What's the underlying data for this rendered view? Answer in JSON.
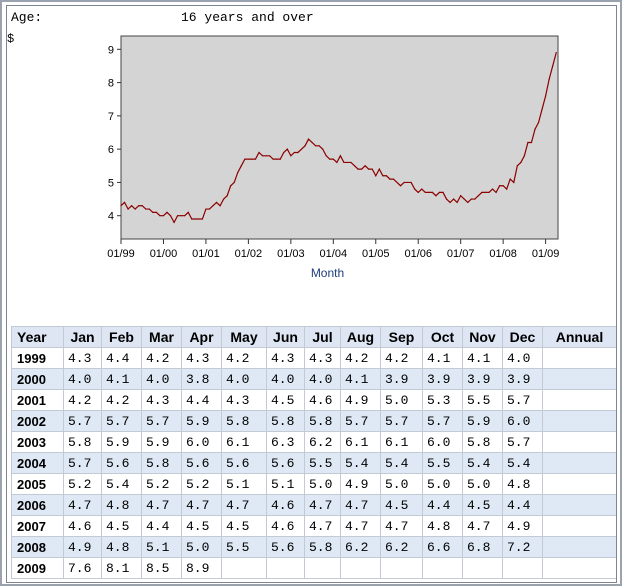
{
  "header": {
    "age_label": "Age:",
    "age_value": "16 years and over",
    "side_mark": "$"
  },
  "chart_data": {
    "type": "line",
    "title": "",
    "xlabel": "Month",
    "ylabel": "",
    "ylim": [
      3.3,
      9.4
    ],
    "yticks": [
      4,
      5,
      6,
      7,
      8,
      9
    ],
    "xtick_labels": [
      "01/99",
      "01/00",
      "01/01",
      "01/02",
      "01/03",
      "01/04",
      "01/05",
      "01/06",
      "01/07",
      "01/08",
      "01/09"
    ],
    "grid": false,
    "line_color": "#8b0000",
    "plot_bg": "#d4d4d4",
    "series": [
      {
        "start": "1999-01",
        "values": [
          4.3,
          4.4,
          4.2,
          4.3,
          4.2,
          4.3,
          4.3,
          4.2,
          4.2,
          4.1,
          4.1,
          4.0,
          4.0,
          4.1,
          4.0,
          3.8,
          4.0,
          4.0,
          4.0,
          4.1,
          3.9,
          3.9,
          3.9,
          3.9,
          4.2,
          4.2,
          4.3,
          4.4,
          4.3,
          4.5,
          4.6,
          4.9,
          5.0,
          5.3,
          5.5,
          5.7,
          5.7,
          5.7,
          5.7,
          5.9,
          5.8,
          5.8,
          5.8,
          5.7,
          5.7,
          5.7,
          5.9,
          6.0,
          5.8,
          5.9,
          5.9,
          6.0,
          6.1,
          6.3,
          6.2,
          6.1,
          6.1,
          6.0,
          5.8,
          5.7,
          5.7,
          5.6,
          5.8,
          5.6,
          5.6,
          5.6,
          5.5,
          5.4,
          5.4,
          5.5,
          5.4,
          5.4,
          5.2,
          5.4,
          5.2,
          5.2,
          5.1,
          5.1,
          5.0,
          4.9,
          5.0,
          5.0,
          5.0,
          4.8,
          4.7,
          4.8,
          4.7,
          4.7,
          4.7,
          4.6,
          4.7,
          4.7,
          4.5,
          4.4,
          4.5,
          4.4,
          4.6,
          4.5,
          4.4,
          4.5,
          4.5,
          4.6,
          4.7,
          4.7,
          4.7,
          4.8,
          4.7,
          4.9,
          4.9,
          4.8,
          5.1,
          5.0,
          5.5,
          5.6,
          5.8,
          6.2,
          6.2,
          6.6,
          6.8,
          7.2,
          7.6,
          8.1,
          8.5,
          8.9
        ]
      }
    ]
  },
  "table": {
    "headers": [
      "Year",
      "Jan",
      "Feb",
      "Mar",
      "Apr",
      "May",
      "Jun",
      "Jul",
      "Aug",
      "Sep",
      "Oct",
      "Nov",
      "Dec",
      "Annual"
    ],
    "rows": [
      [
        "1999",
        "4.3",
        "4.4",
        "4.2",
        "4.3",
        "4.2",
        "4.3",
        "4.3",
        "4.2",
        "4.2",
        "4.1",
        "4.1",
        "4.0",
        ""
      ],
      [
        "2000",
        "4.0",
        "4.1",
        "4.0",
        "3.8",
        "4.0",
        "4.0",
        "4.0",
        "4.1",
        "3.9",
        "3.9",
        "3.9",
        "3.9",
        ""
      ],
      [
        "2001",
        "4.2",
        "4.2",
        "4.3",
        "4.4",
        "4.3",
        "4.5",
        "4.6",
        "4.9",
        "5.0",
        "5.3",
        "5.5",
        "5.7",
        ""
      ],
      [
        "2002",
        "5.7",
        "5.7",
        "5.7",
        "5.9",
        "5.8",
        "5.8",
        "5.8",
        "5.7",
        "5.7",
        "5.7",
        "5.9",
        "6.0",
        ""
      ],
      [
        "2003",
        "5.8",
        "5.9",
        "5.9",
        "6.0",
        "6.1",
        "6.3",
        "6.2",
        "6.1",
        "6.1",
        "6.0",
        "5.8",
        "5.7",
        ""
      ],
      [
        "2004",
        "5.7",
        "5.6",
        "5.8",
        "5.6",
        "5.6",
        "5.6",
        "5.5",
        "5.4",
        "5.4",
        "5.5",
        "5.4",
        "5.4",
        ""
      ],
      [
        "2005",
        "5.2",
        "5.4",
        "5.2",
        "5.2",
        "5.1",
        "5.1",
        "5.0",
        "4.9",
        "5.0",
        "5.0",
        "5.0",
        "4.8",
        ""
      ],
      [
        "2006",
        "4.7",
        "4.8",
        "4.7",
        "4.7",
        "4.7",
        "4.6",
        "4.7",
        "4.7",
        "4.5",
        "4.4",
        "4.5",
        "4.4",
        ""
      ],
      [
        "2007",
        "4.6",
        "4.5",
        "4.4",
        "4.5",
        "4.5",
        "4.6",
        "4.7",
        "4.7",
        "4.7",
        "4.8",
        "4.7",
        "4.9",
        ""
      ],
      [
        "2008",
        "4.9",
        "4.8",
        "5.1",
        "5.0",
        "5.5",
        "5.6",
        "5.8",
        "6.2",
        "6.2",
        "6.6",
        "6.8",
        "7.2",
        ""
      ],
      [
        "2009",
        "7.6",
        "8.1",
        "8.5",
        "8.9",
        "",
        "",
        "",
        "",
        "",
        "",
        "",
        "",
        ""
      ]
    ]
  }
}
